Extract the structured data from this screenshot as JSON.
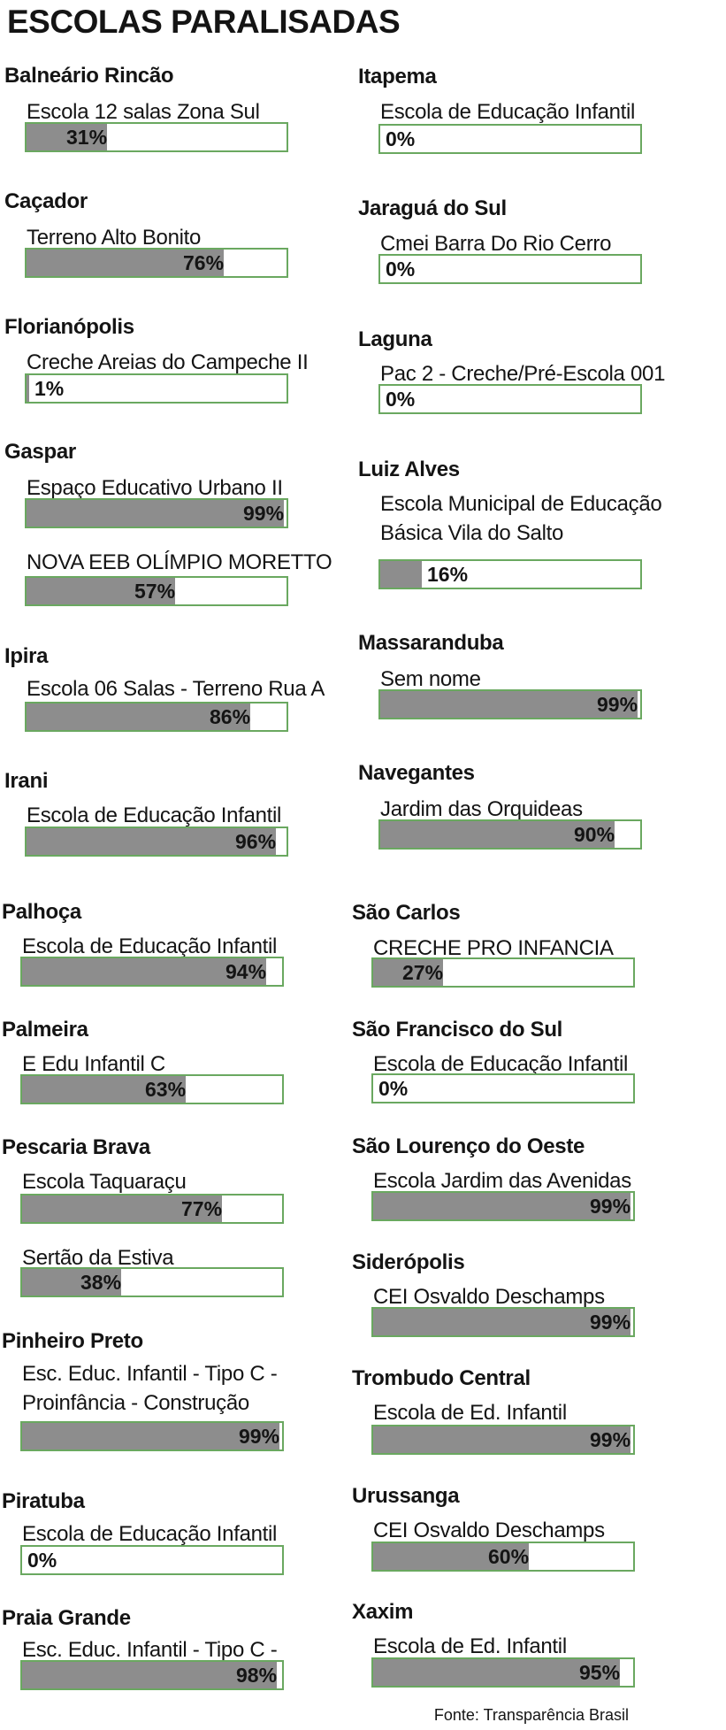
{
  "title": "ESCOLAS PARALISADAS",
  "source": "Fonte: Transparência Brasil",
  "colors": {
    "border": "#6aa860",
    "fill": "#8d8d8d"
  },
  "chart_data": {
    "type": "bar",
    "orientation": "horizontal",
    "title": "ESCOLAS PARALISADAS",
    "unit": "%",
    "xlim": [
      0,
      100
    ],
    "source": "Fonte: Transparência Brasil",
    "groups": [
      {
        "city": "Balneário Rincão",
        "schools": [
          {
            "name": "Escola 12 salas Zona Sul",
            "value": 31,
            "label": "31%"
          }
        ]
      },
      {
        "city": "Caçador",
        "schools": [
          {
            "name": "Terreno Alto Bonito",
            "value": 76,
            "label": "76%"
          }
        ]
      },
      {
        "city": "Florianópolis",
        "schools": [
          {
            "name": "Creche Areias do Campeche II",
            "value": 1,
            "label": "1%"
          }
        ]
      },
      {
        "city": "Gaspar",
        "schools": [
          {
            "name": "Espaço Educativo Urbano II",
            "value": 99,
            "label": "99%"
          },
          {
            "name": "NOVA EEB OLÍMPIO MORETTO",
            "value": 57,
            "label": "57%"
          }
        ]
      },
      {
        "city": "Ipira",
        "schools": [
          {
            "name": "Escola 06 Salas - Terreno Rua A",
            "value": 86,
            "label": "86%"
          }
        ]
      },
      {
        "city": "Irani",
        "schools": [
          {
            "name": "Escola de Educação Infantil",
            "value": 96,
            "label": "96%"
          }
        ]
      },
      {
        "city": "Palhoça",
        "schools": [
          {
            "name": "Escola de Educação Infantil",
            "value": 94,
            "label": "94%"
          }
        ]
      },
      {
        "city": "Palmeira",
        "schools": [
          {
            "name": "E Edu Infantil C",
            "value": 63,
            "label": "63%"
          }
        ]
      },
      {
        "city": "Pescaria Brava",
        "schools": [
          {
            "name": "Escola Taquaraçu",
            "value": 77,
            "label": "77%"
          },
          {
            "name": "Sertão da Estiva",
            "value": 38,
            "label": "38%"
          }
        ]
      },
      {
        "city": "Pinheiro Preto",
        "schools": [
          {
            "name": "Esc. Educ. Infantil - Tipo C - Proinfância - Construção",
            "value": 99,
            "label": "99%"
          }
        ]
      },
      {
        "city": "Piratuba",
        "schools": [
          {
            "name": "Escola de Educação Infantil",
            "value": 0,
            "label": "0%"
          }
        ]
      },
      {
        "city": "Praia Grande",
        "schools": [
          {
            "name": "Esc. Educ. Infantil - Tipo C - Proinfância",
            "value": 98,
            "label": "98%"
          }
        ]
      },
      {
        "city": "Itapema",
        "schools": [
          {
            "name": "Escola de Educação Infantil",
            "value": 0,
            "label": "0%"
          }
        ]
      },
      {
        "city": "Jaraguá do Sul",
        "schools": [
          {
            "name": "Cmei Barra Do Rio Cerro",
            "value": 0,
            "label": "0%"
          }
        ]
      },
      {
        "city": "Laguna",
        "schools": [
          {
            "name": "Pac 2 - Creche/Pré-Escola 001",
            "value": 0,
            "label": "0%"
          }
        ]
      },
      {
        "city": "Luiz Alves",
        "schools": [
          {
            "name": "Escola Municipal de Educação Básica Vila do Salto",
            "value": 16,
            "label": "16%"
          }
        ]
      },
      {
        "city": "Massaranduba",
        "schools": [
          {
            "name": "Sem nome",
            "value": 99,
            "label": "99%"
          }
        ]
      },
      {
        "city": "Navegantes",
        "schools": [
          {
            "name": "Jardim das Orquideas",
            "value": 90,
            "label": "90%"
          }
        ]
      },
      {
        "city": "São Carlos",
        "schools": [
          {
            "name": "CRECHE PRO INFANCIA",
            "value": 27,
            "label": "27%"
          }
        ]
      },
      {
        "city": "São Francisco do Sul",
        "schools": [
          {
            "name": "Escola de Educação Infantil",
            "value": 0,
            "label": "0%"
          }
        ]
      },
      {
        "city": "São Lourenço do Oeste",
        "schools": [
          {
            "name": "Escola Jardim das Avenidas",
            "value": 99,
            "label": "99%"
          }
        ]
      },
      {
        "city": "Siderópolis",
        "schools": [
          {
            "name": "CEI Osvaldo Deschamps",
            "value": 99,
            "label": "99%"
          }
        ]
      },
      {
        "city": "Trombudo Central",
        "schools": [
          {
            "name": "Escola de Ed. Infantil",
            "value": 99,
            "label": "99%"
          }
        ]
      },
      {
        "city": "Urussanga",
        "schools": [
          {
            "name": "CEI Osvaldo Deschamps",
            "value": 60,
            "label": "60%"
          }
        ]
      },
      {
        "city": "Xaxim",
        "schools": [
          {
            "name": "Escola de Ed. Infantil",
            "value": 95,
            "label": "95%"
          }
        ]
      }
    ]
  }
}
